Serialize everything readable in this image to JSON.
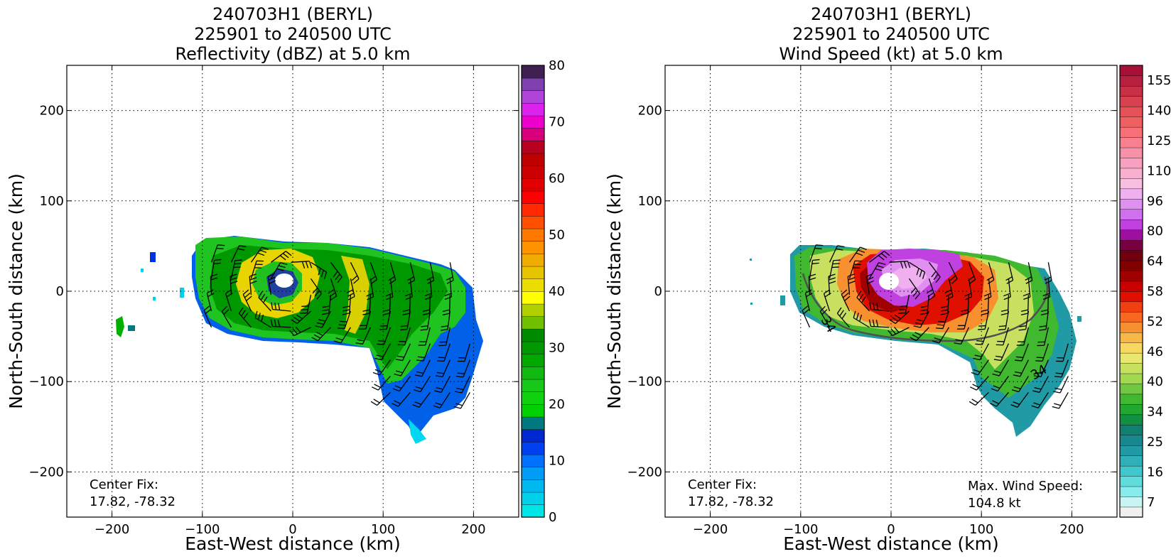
{
  "chart_data": [
    {
      "type": "heatmap",
      "title_lines": [
        "240703H1 (BERYL)",
        "225901 to 240500 UTC",
        "Reflectivity (dBZ) at 5.0 km"
      ],
      "xlabel": "East-West distance (km)",
      "ylabel": "North-South distance (km)",
      "xlim": [
        -250,
        250
      ],
      "ylim": [
        -250,
        250
      ],
      "xticks": [
        -200,
        -100,
        0,
        100,
        200
      ],
      "yticks": [
        -200,
        -100,
        0,
        100,
        200
      ],
      "grid": true,
      "annotation_lines": [
        "Center Fix:",
        "17.82, -78.32"
      ],
      "colorbar": {
        "min": 0,
        "max": 80,
        "step": 2.5,
        "ticks": [
          0,
          10,
          20,
          30,
          40,
          50,
          60,
          70,
          80
        ],
        "colors": [
          "#00e5e5",
          "#00d0ea",
          "#00b8f0",
          "#009cf5",
          "#0070ff",
          "#0040f0",
          "#0028d0",
          "#007a80",
          "#00d000",
          "#10d210",
          "#18c818",
          "#10b810",
          "#00a800",
          "#009800",
          "#008a00",
          "#70c000",
          "#b0d000",
          "#ffff00",
          "#ecdc00",
          "#e8c400",
          "#f0ac00",
          "#ff9400",
          "#ff7800",
          "#ff5000",
          "#ff2800",
          "#ff0000",
          "#e00000",
          "#cc0000",
          "#c00000",
          "#b80020",
          "#d8007a",
          "#ee00cc",
          "#dd22ee",
          "#b044d8",
          "#8040b0",
          "#402050"
        ]
      }
    },
    {
      "type": "heatmap",
      "title_lines": [
        "240703H1 (BERYL)",
        "225901 to 240500 UTC",
        "Wind Speed (kt) at 5.0 km"
      ],
      "xlabel": "East-West distance (km)",
      "ylabel": "North-South distance (km)",
      "xlim": [
        -250,
        250
      ],
      "ylim": [
        -250,
        250
      ],
      "xticks": [
        -200,
        -100,
        0,
        100,
        200
      ],
      "yticks": [
        -200,
        -100,
        0,
        100,
        200
      ],
      "grid": true,
      "annotation_lines": [
        "Center Fix:",
        "17.82, -78.32"
      ],
      "annotation_right_lines": [
        "Max. Wind Speed:",
        "104.8 kt"
      ],
      "contour_label": "34",
      "max_wind_kt": 104.8,
      "colorbar": {
        "tick_labels": [
          "7",
          "16",
          "25",
          "34",
          "40",
          "46",
          "52",
          "58",
          "64",
          "80",
          "96",
          "110",
          "125",
          "140",
          "155"
        ],
        "colors": [
          "#f0f0f0",
          "#c8f4f4",
          "#88ecec",
          "#60dcdc",
          "#40c8cc",
          "#30b0b8",
          "#209aa4",
          "#18888e",
          "#108070",
          "#109040",
          "#20a830",
          "#40b830",
          "#70c840",
          "#a0d850",
          "#c8e060",
          "#e8e870",
          "#f8d860",
          "#f8b848",
          "#f89030",
          "#f86820",
          "#f04010",
          "#e01000",
          "#c80000",
          "#a00000",
          "#800000",
          "#700010",
          "#780040",
          "#a010a0",
          "#c040e0",
          "#d070f0",
          "#e090f0",
          "#f0b0f0",
          "#f8c0e0",
          "#f8b0d0",
          "#f8a0c0",
          "#f890a8",
          "#f88090",
          "#f87078",
          "#f06060",
          "#e85058",
          "#d84050",
          "#c83048",
          "#b82040",
          "#a81038"
        ]
      }
    }
  ]
}
